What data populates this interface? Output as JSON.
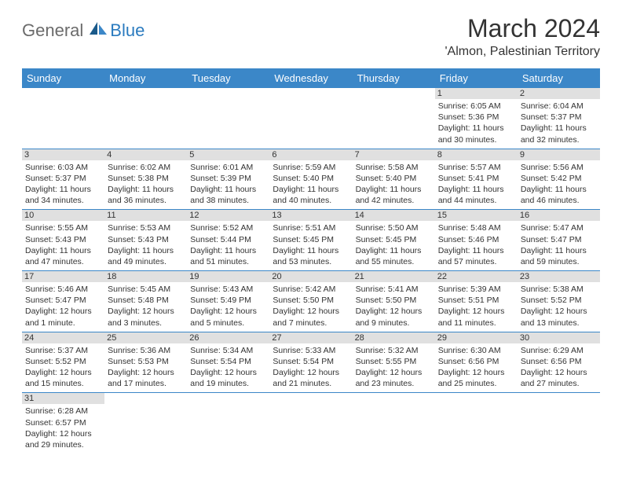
{
  "logo": {
    "text_gray": "General",
    "text_blue": "Blue"
  },
  "title": "March 2024",
  "location": "'Almon, Palestinian Territory",
  "header_bg": "#3b87c8",
  "header_fg": "#ffffff",
  "daynum_bg": "#e0e0e0",
  "border_color": "#3b87c8",
  "dayLabels": [
    "Sunday",
    "Monday",
    "Tuesday",
    "Wednesday",
    "Thursday",
    "Friday",
    "Saturday"
  ],
  "weeks": [
    [
      null,
      null,
      null,
      null,
      null,
      {
        "n": "1",
        "sr": "6:05 AM",
        "ss": "5:36 PM",
        "dl": "11 hours and 30 minutes."
      },
      {
        "n": "2",
        "sr": "6:04 AM",
        "ss": "5:37 PM",
        "dl": "11 hours and 32 minutes."
      }
    ],
    [
      {
        "n": "3",
        "sr": "6:03 AM",
        "ss": "5:37 PM",
        "dl": "11 hours and 34 minutes."
      },
      {
        "n": "4",
        "sr": "6:02 AM",
        "ss": "5:38 PM",
        "dl": "11 hours and 36 minutes."
      },
      {
        "n": "5",
        "sr": "6:01 AM",
        "ss": "5:39 PM",
        "dl": "11 hours and 38 minutes."
      },
      {
        "n": "6",
        "sr": "5:59 AM",
        "ss": "5:40 PM",
        "dl": "11 hours and 40 minutes."
      },
      {
        "n": "7",
        "sr": "5:58 AM",
        "ss": "5:40 PM",
        "dl": "11 hours and 42 minutes."
      },
      {
        "n": "8",
        "sr": "5:57 AM",
        "ss": "5:41 PM",
        "dl": "11 hours and 44 minutes."
      },
      {
        "n": "9",
        "sr": "5:56 AM",
        "ss": "5:42 PM",
        "dl": "11 hours and 46 minutes."
      }
    ],
    [
      {
        "n": "10",
        "sr": "5:55 AM",
        "ss": "5:43 PM",
        "dl": "11 hours and 47 minutes."
      },
      {
        "n": "11",
        "sr": "5:53 AM",
        "ss": "5:43 PM",
        "dl": "11 hours and 49 minutes."
      },
      {
        "n": "12",
        "sr": "5:52 AM",
        "ss": "5:44 PM",
        "dl": "11 hours and 51 minutes."
      },
      {
        "n": "13",
        "sr": "5:51 AM",
        "ss": "5:45 PM",
        "dl": "11 hours and 53 minutes."
      },
      {
        "n": "14",
        "sr": "5:50 AM",
        "ss": "5:45 PM",
        "dl": "11 hours and 55 minutes."
      },
      {
        "n": "15",
        "sr": "5:48 AM",
        "ss": "5:46 PM",
        "dl": "11 hours and 57 minutes."
      },
      {
        "n": "16",
        "sr": "5:47 AM",
        "ss": "5:47 PM",
        "dl": "11 hours and 59 minutes."
      }
    ],
    [
      {
        "n": "17",
        "sr": "5:46 AM",
        "ss": "5:47 PM",
        "dl": "12 hours and 1 minute."
      },
      {
        "n": "18",
        "sr": "5:45 AM",
        "ss": "5:48 PM",
        "dl": "12 hours and 3 minutes."
      },
      {
        "n": "19",
        "sr": "5:43 AM",
        "ss": "5:49 PM",
        "dl": "12 hours and 5 minutes."
      },
      {
        "n": "20",
        "sr": "5:42 AM",
        "ss": "5:50 PM",
        "dl": "12 hours and 7 minutes."
      },
      {
        "n": "21",
        "sr": "5:41 AM",
        "ss": "5:50 PM",
        "dl": "12 hours and 9 minutes."
      },
      {
        "n": "22",
        "sr": "5:39 AM",
        "ss": "5:51 PM",
        "dl": "12 hours and 11 minutes."
      },
      {
        "n": "23",
        "sr": "5:38 AM",
        "ss": "5:52 PM",
        "dl": "12 hours and 13 minutes."
      }
    ],
    [
      {
        "n": "24",
        "sr": "5:37 AM",
        "ss": "5:52 PM",
        "dl": "12 hours and 15 minutes."
      },
      {
        "n": "25",
        "sr": "5:36 AM",
        "ss": "5:53 PM",
        "dl": "12 hours and 17 minutes."
      },
      {
        "n": "26",
        "sr": "5:34 AM",
        "ss": "5:54 PM",
        "dl": "12 hours and 19 minutes."
      },
      {
        "n": "27",
        "sr": "5:33 AM",
        "ss": "5:54 PM",
        "dl": "12 hours and 21 minutes."
      },
      {
        "n": "28",
        "sr": "5:32 AM",
        "ss": "5:55 PM",
        "dl": "12 hours and 23 minutes."
      },
      {
        "n": "29",
        "sr": "6:30 AM",
        "ss": "6:56 PM",
        "dl": "12 hours and 25 minutes."
      },
      {
        "n": "30",
        "sr": "6:29 AM",
        "ss": "6:56 PM",
        "dl": "12 hours and 27 minutes."
      }
    ],
    [
      {
        "n": "31",
        "sr": "6:28 AM",
        "ss": "6:57 PM",
        "dl": "12 hours and 29 minutes."
      },
      null,
      null,
      null,
      null,
      null,
      null
    ]
  ],
  "labels": {
    "sunrise": "Sunrise: ",
    "sunset": "Sunset: ",
    "daylight": "Daylight: "
  }
}
